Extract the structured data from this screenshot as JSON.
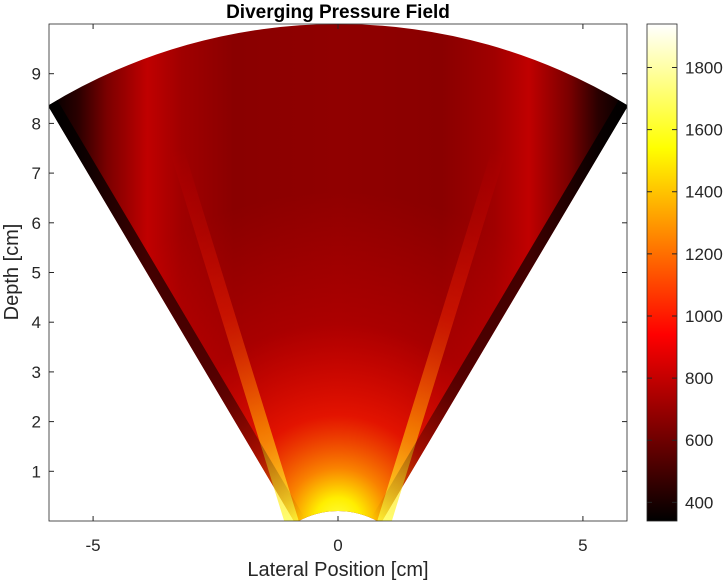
{
  "chart_data": {
    "type": "heatmap",
    "title": "Diverging Pressure Field",
    "xlabel": "Lateral Position [cm]",
    "ylabel": "Depth [cm]",
    "xlim": [
      -5.9,
      5.9
    ],
    "ylim": [
      0,
      10
    ],
    "xticks": [
      -5,
      0,
      5
    ],
    "yticks": [
      1,
      2,
      3,
      4,
      5,
      6,
      7,
      8,
      9
    ],
    "sector": {
      "apex": [
        0,
        -1.5
      ],
      "r_min": 1.7,
      "r_max": 11.5,
      "half_angle_deg": 31,
      "source_half_width": 0.95
    },
    "colormap": "hot",
    "colorbar": {
      "min": 340,
      "max": 1940,
      "ticks": [
        400,
        600,
        800,
        1000,
        1200,
        1400,
        1600,
        1800
      ]
    },
    "pressure_samples": [
      {
        "x": 0,
        "depth": 0.3,
        "value": 1850
      },
      {
        "x": 0,
        "depth": 1,
        "value": 1400
      },
      {
        "x": 0,
        "depth": 2,
        "value": 1100
      },
      {
        "x": 0,
        "depth": 4,
        "value": 930
      },
      {
        "x": 0,
        "depth": 6,
        "value": 780
      },
      {
        "x": 0,
        "depth": 9,
        "value": 660
      },
      {
        "x": -2.7,
        "depth": 5,
        "value": 1050
      },
      {
        "x": 2.7,
        "depth": 5,
        "value": 1050
      },
      {
        "x": -3.5,
        "depth": 5,
        "value": 360
      },
      {
        "x": 3.5,
        "depth": 5,
        "value": 360
      },
      {
        "x": -5.5,
        "depth": 8.5,
        "value": 350
      },
      {
        "x": 5.5,
        "depth": 8.5,
        "value": 350
      }
    ]
  }
}
